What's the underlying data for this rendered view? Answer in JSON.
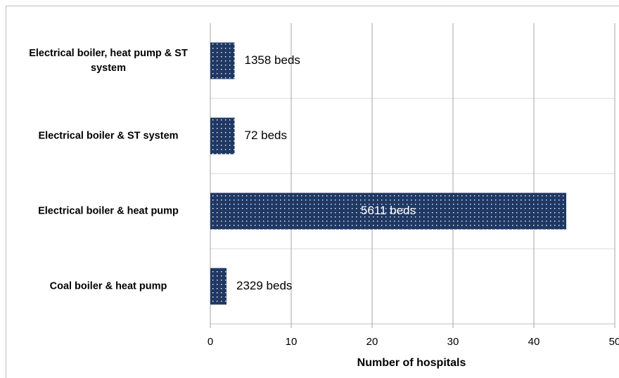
{
  "chart_data": {
    "type": "bar",
    "orientation": "horizontal",
    "x_label": "Number of hospitals",
    "categories": [
      "Electrical boiler, heat pump & ST system",
      "Electrical boiler & ST system",
      "Electrical boiler & heat pump",
      "Coal boiler & heat pump"
    ],
    "values": [
      3,
      3,
      44,
      2
    ],
    "bar_annotations": [
      "1358 beds",
      "72 beds",
      "5611 beds",
      "2329 beds"
    ],
    "color": "#1f3864",
    "xlim": [
      0,
      50
    ],
    "xticks": [
      0,
      10,
      20,
      30,
      40,
      50
    ],
    "grid": true
  }
}
